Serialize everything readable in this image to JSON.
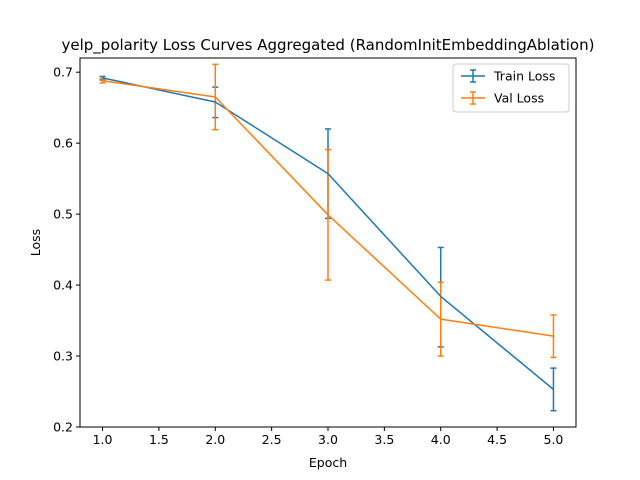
{
  "chart_data": {
    "type": "line",
    "title": "yelp_polarity Loss Curves Aggregated (RandomInitEmbeddingAblation)",
    "xlabel": "Epoch",
    "ylabel": "Loss",
    "x": [
      1,
      2,
      3,
      4,
      5
    ],
    "xlim": [
      0.8,
      5.2
    ],
    "ylim": [
      0.2,
      0.72
    ],
    "xticks": [
      1.0,
      1.5,
      2.0,
      2.5,
      3.0,
      3.5,
      4.0,
      4.5,
      5.0
    ],
    "xtick_labels": [
      "1.0",
      "1.5",
      "2.0",
      "2.5",
      "3.0",
      "3.5",
      "4.0",
      "4.5",
      "5.0"
    ],
    "yticks": [
      0.2,
      0.3,
      0.4,
      0.5,
      0.6,
      0.7
    ],
    "ytick_labels": [
      "0.2",
      "0.3",
      "0.4",
      "0.5",
      "0.6",
      "0.7"
    ],
    "grid": false,
    "legend_position": "top-right",
    "series": [
      {
        "name": "Train Loss",
        "color": "#1f77b4",
        "values": [
          0.692,
          0.658,
          0.557,
          0.384,
          0.253
        ],
        "err_low": [
          0.689,
          0.636,
          0.494,
          0.313,
          0.223
        ],
        "err_high": [
          0.694,
          0.679,
          0.62,
          0.453,
          0.283
        ]
      },
      {
        "name": "Val Loss",
        "color": "#ff7f0e",
        "values": [
          0.688,
          0.665,
          0.499,
          0.352,
          0.328
        ],
        "err_low": [
          0.685,
          0.619,
          0.407,
          0.3,
          0.298
        ],
        "err_high": [
          0.691,
          0.711,
          0.591,
          0.404,
          0.358
        ]
      }
    ]
  }
}
